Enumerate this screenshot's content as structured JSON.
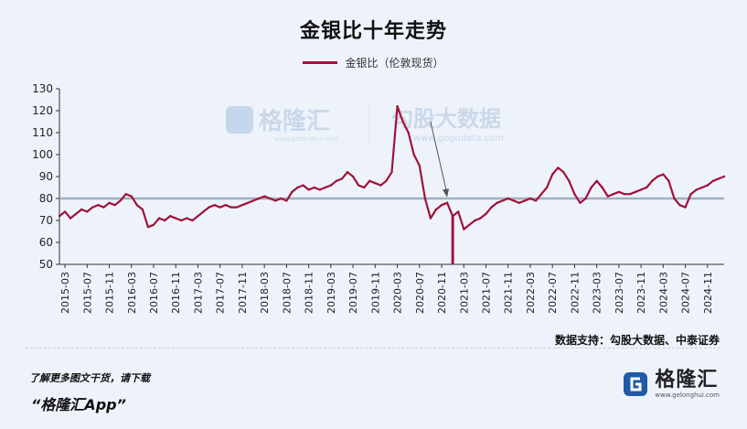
{
  "title": "金银比十年走势",
  "legend_label": "金银比（伦敦现货）",
  "source_note": "数据支持：勾股大数据、中泰证券",
  "footer": {
    "cta": "了解更多图文干货，请下载",
    "app_name": "“格隆汇App”",
    "logo_text": "格隆汇",
    "logo_url": "www.gelonghui.com"
  },
  "watermark": {
    "left_text": "格隆汇",
    "left_url": "www.gelonghui.com",
    "right_text": "勾股大数据",
    "right_url": "www.gogudata.com"
  },
  "colors": {
    "series": "#a0123a",
    "reference_line": "#9fb0bf",
    "brand_blue": "#1f5aa6"
  },
  "chart_data": {
    "type": "line",
    "title": "金银比十年走势",
    "xlabel": "",
    "ylabel": "",
    "ylim": [
      50,
      130
    ],
    "yticks": [
      50,
      60,
      70,
      80,
      90,
      100,
      110,
      120,
      130
    ],
    "xticks": [
      "2015-03",
      "2015-07",
      "2015-11",
      "2016-03",
      "2016-07",
      "2016-11",
      "2017-03",
      "2017-07",
      "2017-11",
      "2018-03",
      "2018-07",
      "2018-11",
      "2019-03",
      "2019-07",
      "2019-11",
      "2020-03",
      "2020-07",
      "2020-11",
      "2021-03",
      "2021-07",
      "2021-11",
      "2022-03",
      "2022-07",
      "2022-11",
      "2023-03",
      "2023-07",
      "2023-11",
      "2024-03",
      "2024-07",
      "2024-11"
    ],
    "reference_line": 80,
    "grid": false,
    "series": [
      {
        "name": "金银比（伦敦现货）",
        "x": [
          "2015-02",
          "2015-03",
          "2015-04",
          "2015-05",
          "2015-06",
          "2015-07",
          "2015-08",
          "2015-09",
          "2015-10",
          "2015-11",
          "2015-12",
          "2016-01",
          "2016-02",
          "2016-03",
          "2016-04",
          "2016-05",
          "2016-06",
          "2016-07",
          "2016-08",
          "2016-09",
          "2016-10",
          "2016-11",
          "2016-12",
          "2017-01",
          "2017-02",
          "2017-03",
          "2017-04",
          "2017-05",
          "2017-06",
          "2017-07",
          "2017-08",
          "2017-09",
          "2017-10",
          "2017-11",
          "2017-12",
          "2018-01",
          "2018-02",
          "2018-03",
          "2018-04",
          "2018-05",
          "2018-06",
          "2018-07",
          "2018-08",
          "2018-09",
          "2018-10",
          "2018-11",
          "2018-12",
          "2019-01",
          "2019-02",
          "2019-03",
          "2019-04",
          "2019-05",
          "2019-06",
          "2019-07",
          "2019-08",
          "2019-09",
          "2019-10",
          "2019-11",
          "2019-12",
          "2020-01",
          "2020-02",
          "2020-03",
          "2020-04",
          "2020-05",
          "2020-06",
          "2020-07",
          "2020-08",
          "2020-09",
          "2020-10",
          "2020-11",
          "2020-12",
          "2021-01",
          "2021-02",
          "2021-03",
          "2021-04",
          "2021-05",
          "2021-06",
          "2021-07",
          "2021-08",
          "2021-09",
          "2021-10",
          "2021-11",
          "2021-12",
          "2022-01",
          "2022-02",
          "2022-03",
          "2022-04",
          "2022-05",
          "2022-06",
          "2022-07",
          "2022-08",
          "2022-09",
          "2022-10",
          "2022-11",
          "2022-12",
          "2023-01",
          "2023-02",
          "2023-03",
          "2023-04",
          "2023-05",
          "2023-06",
          "2023-07",
          "2023-08",
          "2023-09",
          "2023-10",
          "2023-11",
          "2023-12",
          "2024-01",
          "2024-02",
          "2024-03",
          "2024-04",
          "2024-05",
          "2024-06",
          "2024-07",
          "2024-08",
          "2024-09",
          "2024-10",
          "2024-11",
          "2024-12",
          "2025-01",
          "2025-02"
        ],
        "values": [
          72,
          74,
          71,
          73,
          75,
          74,
          76,
          77,
          76,
          78,
          77,
          79,
          82,
          81,
          77,
          75,
          67,
          68,
          71,
          70,
          72,
          71,
          70,
          71,
          70,
          72,
          74,
          76,
          77,
          76,
          77,
          76,
          76,
          77,
          78,
          79,
          80,
          81,
          80,
          79,
          80,
          79,
          83,
          85,
          86,
          84,
          85,
          84,
          85,
          86,
          88,
          89,
          92,
          90,
          86,
          85,
          88,
          87,
          86,
          88,
          92,
          122,
          115,
          110,
          100,
          95,
          80,
          71,
          75,
          77,
          78,
          72,
          74,
          66,
          68,
          70,
          71,
          73,
          76,
          78,
          79,
          80,
          79,
          78,
          79,
          80,
          79,
          82,
          85,
          91,
          94,
          92,
          88,
          82,
          78,
          80,
          85,
          88,
          85,
          81,
          82,
          83,
          82,
          82,
          83,
          84,
          85,
          88,
          90,
          91,
          88,
          80,
          77,
          76,
          82,
          84,
          85,
          86,
          88,
          89,
          90
        ]
      }
    ]
  }
}
